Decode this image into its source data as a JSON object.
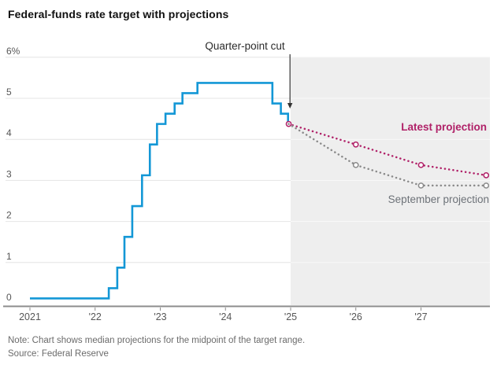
{
  "title": "Federal-funds rate target with projections",
  "annotation_label": "Quarter-point cut",
  "series_labels": {
    "latest": "Latest projection",
    "september": "September projection"
  },
  "note": "Note: Chart shows median projections for the midpoint of the target range.",
  "source": "Source: Federal Reserve",
  "colors": {
    "blue": "#1397d6",
    "magenta": "#b02168",
    "gray_line": "#8a8a8a",
    "gray_label": "#6d7278",
    "shade": "#eeeeee",
    "grid": "#e4e4e4",
    "grid_on_shade": "#fafafa",
    "axis": "#8c8c8c",
    "tick_text": "#565656",
    "arrow": "#333333"
  },
  "chart_data": {
    "type": "line",
    "title": "Federal-funds rate target with projections",
    "xlabel": "",
    "ylabel": "%",
    "ylim": [
      0,
      6
    ],
    "xlim": [
      2021,
      2028
    ],
    "grid": true,
    "legend_position": "inline-right",
    "yticks": [
      {
        "v": 0,
        "label": "0"
      },
      {
        "v": 1,
        "label": "1"
      },
      {
        "v": 2,
        "label": "2"
      },
      {
        "v": 3,
        "label": "3"
      },
      {
        "v": 4,
        "label": "4"
      },
      {
        "v": 5,
        "label": "5"
      },
      {
        "v": 6,
        "label": "6%"
      }
    ],
    "xticks": [
      {
        "year": 2021,
        "label": "2021"
      },
      {
        "year": 2022,
        "label": "'22"
      },
      {
        "year": 2023,
        "label": "'23"
      },
      {
        "year": 2024,
        "label": "'24"
      },
      {
        "year": 2025,
        "label": "'25"
      },
      {
        "year": 2026,
        "label": "'26"
      },
      {
        "year": 2027,
        "label": "'27"
      }
    ],
    "projection_region_start": 2025,
    "annotation": {
      "text": "Quarter-point cut",
      "x": 2024.99,
      "points_to_value": 4.375
    },
    "series": [
      {
        "name": "Federal-funds rate target (midpoint)",
        "style": "step",
        "color_key": "blue",
        "points": [
          [
            2021.0,
            0.125
          ],
          [
            2022.21,
            0.375
          ],
          [
            2022.34,
            0.875
          ],
          [
            2022.45,
            1.625
          ],
          [
            2022.57,
            2.375
          ],
          [
            2022.72,
            3.125
          ],
          [
            2022.84,
            3.875
          ],
          [
            2022.95,
            4.375
          ],
          [
            2023.08,
            4.625
          ],
          [
            2023.22,
            4.875
          ],
          [
            2023.34,
            5.125
          ],
          [
            2023.57,
            5.375
          ],
          [
            2024.72,
            4.875
          ],
          [
            2024.85,
            4.625
          ],
          [
            2024.96,
            4.375
          ]
        ]
      },
      {
        "name": "Latest projection",
        "style": "dotted",
        "color_key": "magenta",
        "start_marker": true,
        "points": [
          [
            2024.97,
            4.375
          ],
          [
            2026.0,
            3.875
          ],
          [
            2027.0,
            3.375
          ],
          [
            2028.0,
            3.125
          ]
        ]
      },
      {
        "name": "September projection",
        "style": "dotted",
        "color_key": "gray_line",
        "start_marker": false,
        "points": [
          [
            2024.97,
            4.375
          ],
          [
            2026.0,
            3.375
          ],
          [
            2027.0,
            2.875
          ],
          [
            2028.0,
            2.875
          ]
        ]
      }
    ]
  }
}
